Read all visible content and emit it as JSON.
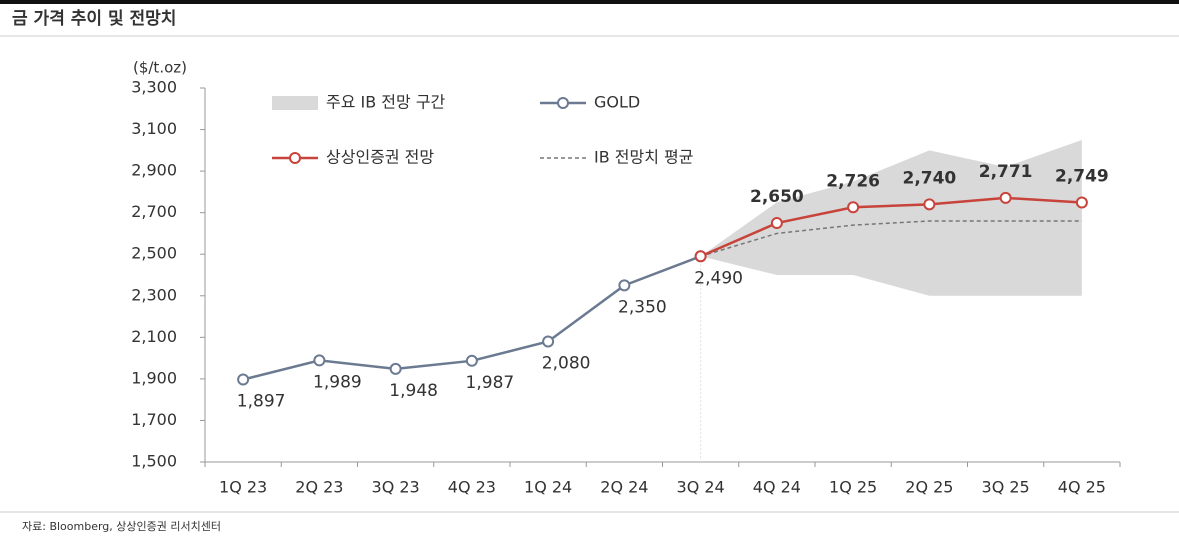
{
  "chart_data": {
    "type": "line",
    "title": "금 가격 추이 및 전망치",
    "y_label": "($/t.oz)",
    "source": "자료: Bloomberg, 상상인증권 리서치센터",
    "categories": [
      "1Q 23",
      "2Q 23",
      "3Q 23",
      "4Q 23",
      "1Q 24",
      "2Q 24",
      "3Q 24",
      "4Q 24",
      "1Q 25",
      "2Q 25",
      "3Q 25",
      "4Q 25"
    ],
    "ylim": [
      1500,
      3300
    ],
    "yticks": [
      {
        "value": 1500,
        "label": "1,500"
      },
      {
        "value": 1700,
        "label": "1,700"
      },
      {
        "value": 1900,
        "label": "1,900"
      },
      {
        "value": 2100,
        "label": "2,100"
      },
      {
        "value": 2300,
        "label": "2,300"
      },
      {
        "value": 2500,
        "label": "2,500"
      },
      {
        "value": 2700,
        "label": "2,700"
      },
      {
        "value": 2900,
        "label": "2,900"
      },
      {
        "value": 3100,
        "label": "3,100"
      },
      {
        "value": 3300,
        "label": "3,300"
      }
    ],
    "band": {
      "name": "주요 IB 전망 구간",
      "color": "#d9d9d9",
      "low": [
        null,
        null,
        null,
        null,
        null,
        null,
        2490,
        2400,
        2400,
        2300,
        2300,
        2300
      ],
      "high": [
        null,
        null,
        null,
        null,
        null,
        null,
        2490,
        2750,
        2850,
        3000,
        2920,
        3050
      ]
    },
    "series": [
      {
        "name": "GOLD",
        "color": "#6b7a90",
        "style": "marker",
        "values": [
          1897,
          1989,
          1948,
          1987,
          2080,
          2350,
          2490,
          null,
          null,
          null,
          null,
          null
        ],
        "value_labels": [
          "1,897",
          "1,989",
          "1,948",
          "1,987",
          "2,080",
          "2,350",
          "2,490",
          null,
          null,
          null,
          null,
          null
        ]
      },
      {
        "name": "상상인증권 전망",
        "color": "#c8433a",
        "style": "marker",
        "values": [
          null,
          null,
          null,
          null,
          null,
          null,
          2490,
          2650,
          2726,
          2740,
          2771,
          2749
        ],
        "value_labels": [
          null,
          null,
          null,
          null,
          null,
          null,
          null,
          "2,650",
          "2,726",
          "2,740",
          "2,771",
          "2,749"
        ]
      },
      {
        "name": "IB 전망치 평균",
        "color": "#777777",
        "style": "dashed",
        "values": [
          null,
          null,
          null,
          null,
          null,
          null,
          2490,
          2600,
          2640,
          2660,
          2660,
          2660
        ]
      }
    ]
  }
}
